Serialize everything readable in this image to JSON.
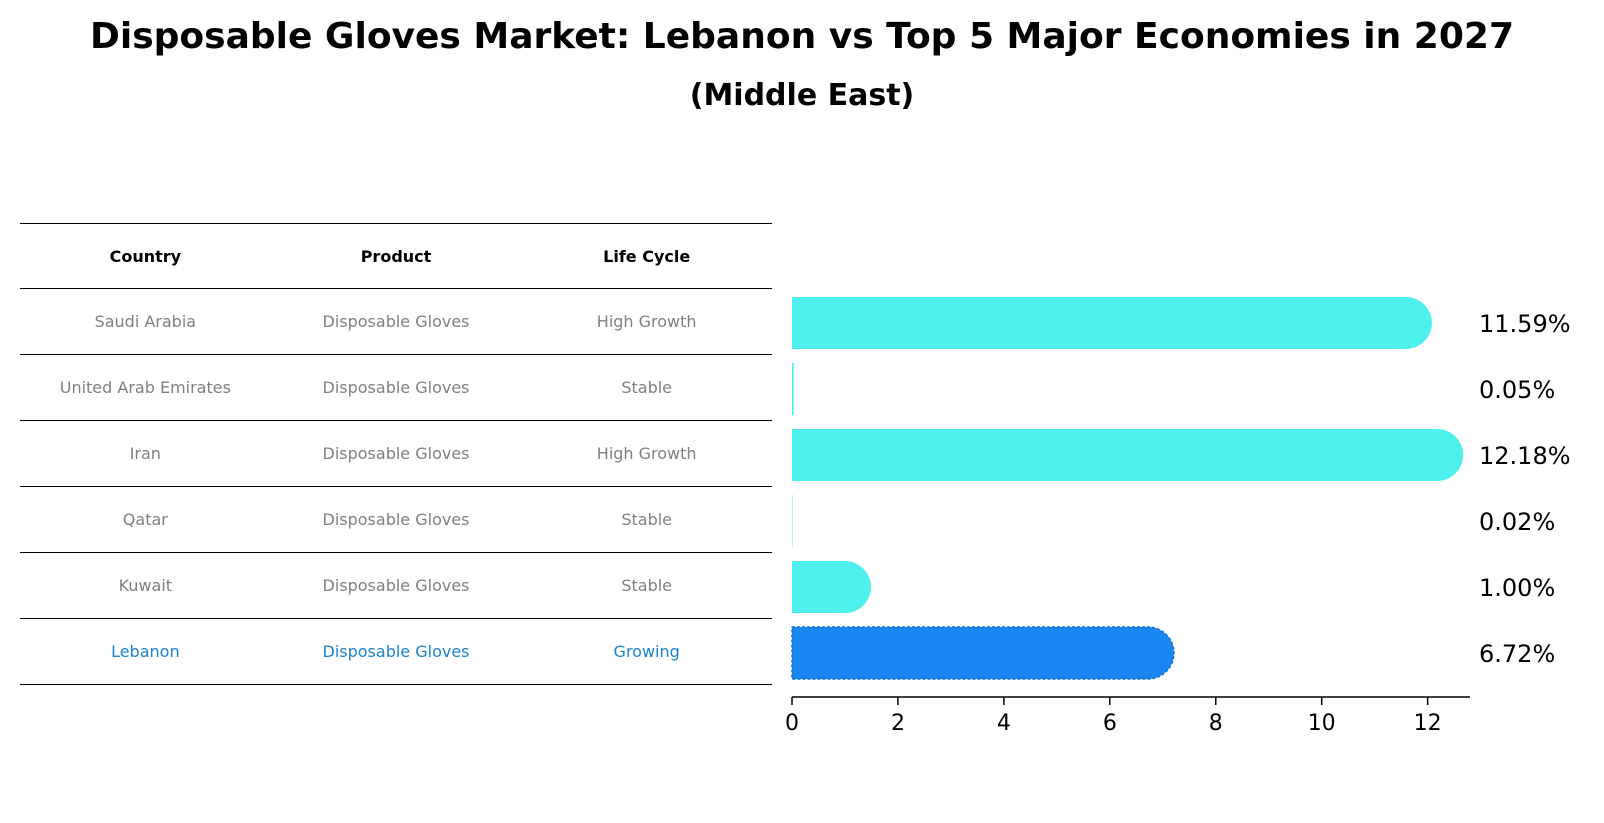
{
  "chart_data": {
    "type": "bar",
    "orientation": "horizontal",
    "title": "Disposable Gloves Market: Lebanon vs Top 5 Major Economies in 2027",
    "subtitle": "(Middle East)",
    "table": {
      "headers": [
        "Country",
        "Product",
        "Life Cycle"
      ],
      "rows": [
        [
          "Saudi Arabia",
          "Disposable Gloves",
          "High Growth"
        ],
        [
          "United Arab Emirates",
          "Disposable Gloves",
          "Stable"
        ],
        [
          "Iran",
          "Disposable Gloves",
          "High Growth"
        ],
        [
          "Qatar",
          "Disposable Gloves",
          "Stable"
        ],
        [
          "Kuwait",
          "Disposable Gloves",
          "Stable"
        ],
        [
          "Lebanon",
          "Disposable Gloves",
          "Growing"
        ]
      ],
      "highlight_row": 5
    },
    "categories": [
      "Saudi Arabia",
      "United Arab Emirates",
      "Iran",
      "Qatar",
      "Kuwait",
      "Lebanon"
    ],
    "values": [
      11.59,
      0.05,
      12.18,
      0.02,
      1.0,
      6.72
    ],
    "value_labels": [
      "11.59%",
      "0.05%",
      "12.18%",
      "0.02%",
      "1.00%",
      "6.72%"
    ],
    "xlim": [
      0,
      12.8
    ],
    "xticks": [
      0,
      2,
      4,
      6,
      8,
      10,
      12
    ],
    "grid": false,
    "colors": {
      "bar": "#4df0ec",
      "highlight": "#1a86f2",
      "highlight_text": "#1a82d0"
    }
  }
}
